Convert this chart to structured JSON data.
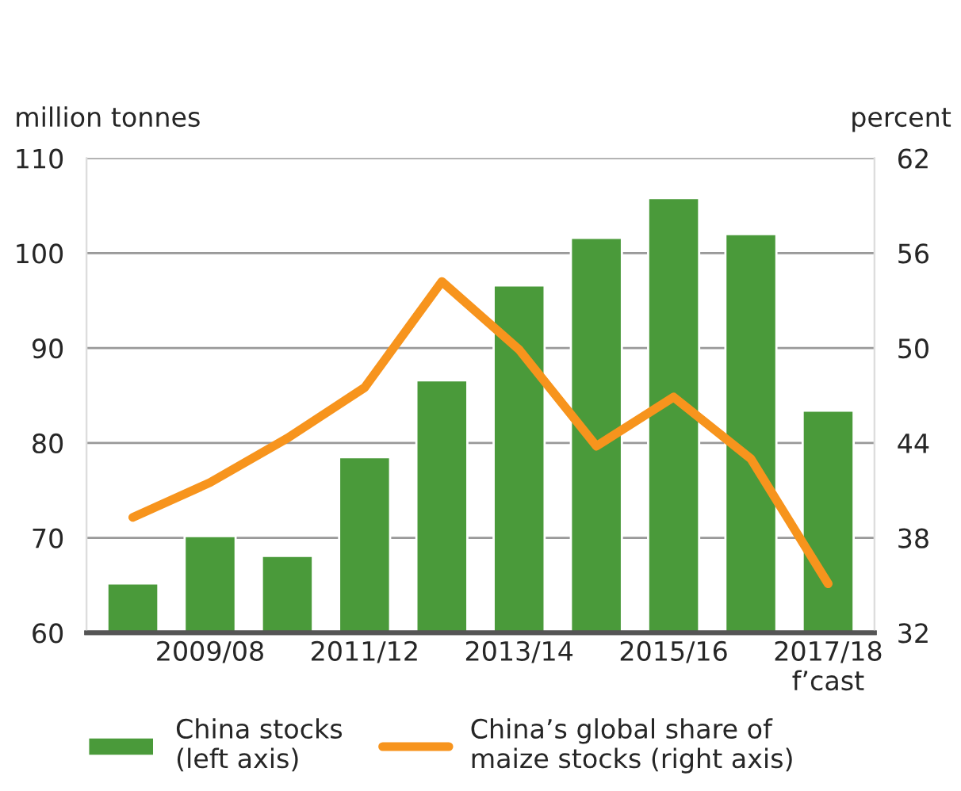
{
  "chart_data": {
    "type": "bar",
    "ylabel": "million tonnes",
    "y2label": "percent",
    "categories": [
      null,
      "2009/08",
      null,
      "2011/12",
      null,
      "2013/14",
      null,
      "2015/16",
      null,
      "2017/18\nf’cast"
    ],
    "series": [
      {
        "name": "China stocks\n(left axis)",
        "color": "#4a9a3a",
        "values": [
          65.2,
          70.2,
          68.1,
          78.5,
          86.6,
          96.6,
          101.6,
          105.8,
          102.0,
          83.4
        ]
      },
      {
        "name": "China’s global share of\nmaize stocks (right axis)",
        "type": "line",
        "axis": "y2",
        "color": "#f7941d",
        "values": [
          39.3,
          41.5,
          44.3,
          47.5,
          54.2,
          49.9,
          43.8,
          46.9,
          43.0,
          35.1
        ]
      }
    ],
    "ylim": [
      60,
      110
    ],
    "yticks": [
      60,
      70,
      80,
      90,
      100,
      110
    ],
    "y2lim": [
      32,
      62
    ],
    "y2ticks": [
      32,
      38,
      44,
      50,
      56,
      62
    ],
    "grid": "y",
    "legend": "bottom",
    "marker": "none",
    "line_style": "solid"
  }
}
